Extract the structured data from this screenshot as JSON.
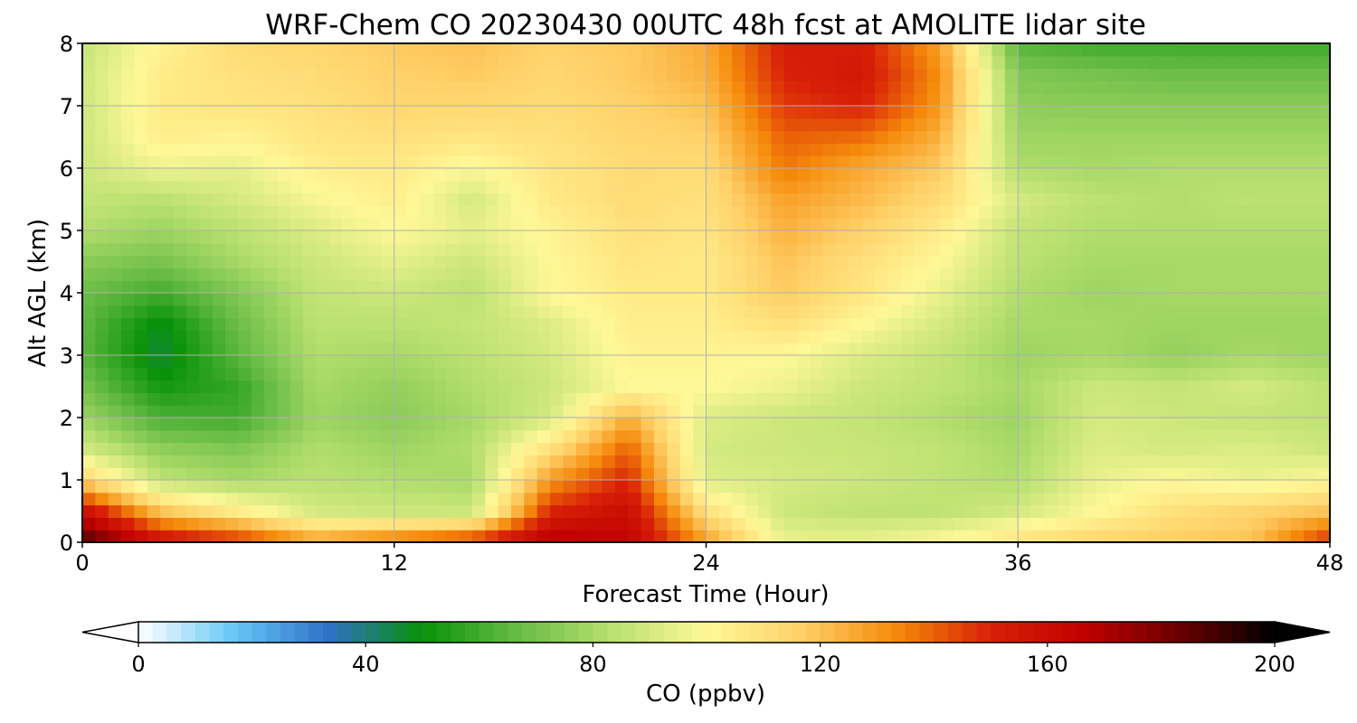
{
  "chart_data": {
    "type": "heatmap",
    "title": "WRF-Chem CO  20230430 00UTC 48h fcst at AMOLITE lidar site",
    "xlabel": "Forecast Time (Hour)",
    "ylabel": "Alt AGL (km)",
    "xlim": [
      0,
      48
    ],
    "ylim": [
      0,
      8
    ],
    "xticks": [
      0,
      12,
      24,
      36,
      48
    ],
    "yticks": [
      0,
      1,
      2,
      3,
      4,
      5,
      6,
      7,
      8
    ],
    "grid": true,
    "x": [
      0,
      3,
      6,
      9,
      12,
      15,
      18,
      21,
      24,
      27,
      30,
      33,
      36,
      39,
      42,
      45,
      48
    ],
    "y": [
      0,
      0.5,
      1,
      1.5,
      2,
      2.5,
      3,
      3.5,
      4,
      4.5,
      5,
      5.5,
      6,
      6.5,
      7,
      7.5,
      8
    ],
    "z": [
      [
        190,
        160,
        150,
        130,
        140,
        150,
        170,
        165,
        130,
        95,
        95,
        100,
        110,
        115,
        118,
        120,
        150
      ],
      [
        160,
        120,
        105,
        90,
        88,
        88,
        150,
        160,
        110,
        88,
        85,
        85,
        90,
        100,
        110,
        115,
        120
      ],
      [
        115,
        85,
        80,
        84,
        82,
        80,
        130,
        150,
        92,
        90,
        88,
        85,
        82,
        95,
        100,
        95,
        100
      ],
      [
        90,
        75,
        72,
        82,
        78,
        82,
        110,
        140,
        90,
        88,
        87,
        85,
        80,
        92,
        90,
        92,
        88
      ],
      [
        78,
        62,
        60,
        78,
        74,
        80,
        90,
        125,
        92,
        88,
        86,
        82,
        78,
        90,
        88,
        86,
        85
      ],
      [
        70,
        52,
        58,
        80,
        76,
        82,
        88,
        100,
        100,
        96,
        88,
        85,
        80,
        88,
        86,
        90,
        84
      ],
      [
        65,
        45,
        65,
        82,
        80,
        84,
        90,
        102,
        102,
        100,
        92,
        86,
        78,
        80,
        76,
        80,
        78
      ],
      [
        66,
        48,
        68,
        84,
        84,
        86,
        92,
        104,
        104,
        110,
        100,
        90,
        80,
        80,
        78,
        78,
        78
      ],
      [
        68,
        60,
        72,
        86,
        88,
        84,
        100,
        106,
        106,
        118,
        108,
        95,
        82,
        78,
        80,
        80,
        80
      ],
      [
        74,
        70,
        80,
        88,
        94,
        88,
        100,
        108,
        106,
        120,
        110,
        100,
        84,
        80,
        80,
        80,
        80
      ],
      [
        82,
        78,
        84,
        92,
        100,
        94,
        102,
        110,
        108,
        124,
        116,
        105,
        86,
        82,
        82,
        82,
        82
      ],
      [
        86,
        84,
        90,
        98,
        104,
        90,
        106,
        112,
        110,
        128,
        122,
        112,
        90,
        84,
        82,
        84,
        84
      ],
      [
        88,
        96,
        94,
        104,
        106,
        98,
        108,
        112,
        112,
        136,
        126,
        118,
        82,
        80,
        82,
        82,
        82
      ],
      [
        88,
        104,
        102,
        108,
        110,
        108,
        110,
        114,
        116,
        140,
        138,
        124,
        78,
        78,
        78,
        78,
        78
      ],
      [
        88,
        106,
        108,
        110,
        114,
        114,
        112,
        116,
        120,
        146,
        150,
        130,
        75,
        74,
        74,
        74,
        74
      ],
      [
        88,
        105,
        110,
        112,
        116,
        118,
        114,
        118,
        124,
        150,
        154,
        132,
        72,
        70,
        68,
        68,
        68
      ],
      [
        86,
        102,
        112,
        114,
        118,
        120,
        116,
        118,
        126,
        152,
        152,
        128,
        64,
        60,
        60,
        60,
        60
      ]
    ],
    "colorbar": {
      "label": "CO  (ppbv)",
      "min": 0,
      "max": 200,
      "ticks": [
        0,
        40,
        80,
        120,
        160,
        200
      ],
      "extend": "both",
      "colors": [
        "#ffffff",
        "#66c8f5",
        "#3070c8",
        "#089208",
        "#66bb44",
        "#b8e070",
        "#fff898",
        "#ffd068",
        "#f58a0a",
        "#d82008",
        "#c00000",
        "#6a0000",
        "#000000"
      ]
    }
  }
}
